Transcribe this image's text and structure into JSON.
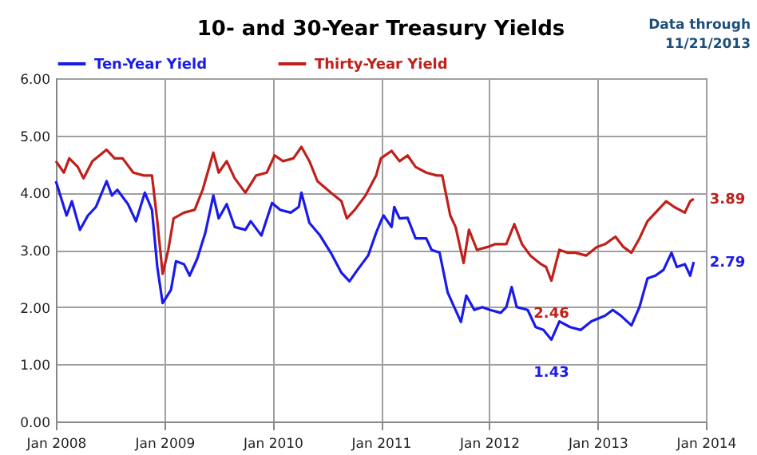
{
  "chart_data": {
    "type": "line",
    "title": "10- and 30-Year Treasury Yields",
    "annotations": [
      "Data through\n11/21/2013",
      {
        "text": "3.89",
        "x": "2013-11-21",
        "y": 3.89
      },
      {
        "text": "2.79",
        "x": "2013-11-21",
        "y": 2.79
      },
      {
        "text": "2.46",
        "x": "2012-07-29",
        "y": 2.46
      },
      {
        "text": "1.43",
        "x": "2012-07-29",
        "y": 1.43
      }
    ],
    "xlim": [
      "2008-01-01",
      "2014-01-01"
    ],
    "xticks": [
      {
        "value": "2008-01-01",
        "label": "Jan 2008"
      },
      {
        "value": "2009-01-01",
        "label": "Jan 2009"
      },
      {
        "value": "2010-01-01",
        "label": "Jan 2010"
      },
      {
        "value": "2011-01-01",
        "label": "Jan 2011"
      },
      {
        "value": "2012-01-01",
        "label": "Jan 2012"
      },
      {
        "value": "2013-01-01",
        "label": "Jan 2013"
      },
      {
        "value": "2014-01-01",
        "label": "Jan 2014"
      }
    ],
    "ylim": [
      0,
      6
    ],
    "yticks": [
      {
        "value": 0,
        "label": "0.00"
      },
      {
        "value": 1,
        "label": "1.00"
      },
      {
        "value": 2,
        "label": "2.00"
      },
      {
        "value": 3,
        "label": "3.00"
      },
      {
        "value": 4,
        "label": "4.00"
      },
      {
        "value": 5,
        "label": "5.00"
      },
      {
        "value": 6,
        "label": "6.00"
      }
    ],
    "grid": true,
    "legend": "top",
    "line_style": "solid",
    "series": [
      {
        "name": "Ten-Year Yield",
        "color": "#1a1aeb",
        "x": [
          "2008-01-01",
          "2008-01-28",
          "2008-02-06",
          "2008-02-24",
          "2008-03-22",
          "2008-04-18",
          "2008-05-15",
          "2008-06-20",
          "2008-07-08",
          "2008-07-26",
          "2008-08-31",
          "2008-09-27",
          "2008-10-15",
          "2008-10-27",
          "2008-11-20",
          "2008-12-08",
          "2008-12-26",
          "2009-01-23",
          "2009-02-09",
          "2009-03-08",
          "2009-03-27",
          "2009-04-22",
          "2009-05-19",
          "2009-06-15",
          "2009-07-03",
          "2009-07-30",
          "2009-08-26",
          "2009-10-01",
          "2009-10-19",
          "2009-11-24",
          "2009-12-30",
          "2010-01-26",
          "2010-03-03",
          "2010-03-30",
          "2010-04-08",
          "2010-05-05",
          "2010-06-10",
          "2010-07-16",
          "2010-08-21",
          "2010-09-17",
          "2010-10-14",
          "2010-11-19",
          "2010-12-16",
          "2011-01-01",
          "2011-01-10",
          "2011-02-06",
          "2011-02-15",
          "2011-03-05",
          "2011-04-01",
          "2011-04-28",
          "2011-06-03",
          "2011-06-21",
          "2011-07-18",
          "2011-08-14",
          "2011-09-01",
          "2011-09-28",
          "2011-10-16",
          "2011-11-12",
          "2011-12-09",
          "2012-01-04",
          "2012-02-09",
          "2012-02-28",
          "2012-03-17",
          "2012-04-03",
          "2012-05-10",
          "2012-06-06",
          "2012-07-02",
          "2012-07-29",
          "2012-08-25",
          "2012-09-30",
          "2012-11-05",
          "2012-12-11",
          "2013-01-26",
          "2013-02-21",
          "2013-03-20",
          "2013-04-25",
          "2013-05-22",
          "2013-06-18",
          "2013-07-15",
          "2013-08-11",
          "2013-09-07",
          "2013-09-25",
          "2013-10-22",
          "2013-11-09",
          "2013-11-21"
        ],
        "values": [
          4.2,
          3.75,
          3.6,
          3.85,
          3.35,
          3.6,
          3.75,
          4.2,
          3.95,
          4.05,
          3.8,
          3.5,
          3.8,
          4.0,
          3.7,
          2.7,
          2.07,
          2.3,
          2.8,
          2.75,
          2.55,
          2.85,
          3.3,
          3.95,
          3.55,
          3.8,
          3.4,
          3.35,
          3.5,
          3.25,
          3.82,
          3.7,
          3.65,
          3.75,
          4.0,
          3.47,
          3.25,
          2.95,
          2.6,
          2.45,
          2.65,
          2.9,
          3.3,
          3.5,
          3.6,
          3.4,
          3.75,
          3.55,
          3.56,
          3.2,
          3.2,
          3.0,
          2.95,
          2.26,
          2.05,
          1.74,
          2.2,
          1.95,
          2.0,
          1.95,
          1.9,
          2.0,
          2.35,
          2.0,
          1.95,
          1.65,
          1.6,
          1.43,
          1.75,
          1.65,
          1.6,
          1.75,
          1.85,
          1.95,
          1.85,
          1.68,
          2.0,
          2.5,
          2.55,
          2.65,
          2.95,
          2.7,
          2.75,
          2.55,
          2.79
        ]
      },
      {
        "name": "Thirty-Year Yield",
        "color": "#c0201a",
        "x": [
          "2008-01-01",
          "2008-01-28",
          "2008-02-15",
          "2008-03-15",
          "2008-04-03",
          "2008-05-03",
          "2008-06-20",
          "2008-07-17",
          "2008-08-13",
          "2008-09-18",
          "2008-10-24",
          "2008-11-20",
          "2008-12-08",
          "2008-12-26",
          "2009-01-14",
          "2009-02-01",
          "2009-03-08",
          "2009-04-13",
          "2009-05-10",
          "2009-06-15",
          "2009-07-03",
          "2009-07-30",
          "2009-08-26",
          "2009-10-01",
          "2009-11-06",
          "2009-12-12",
          "2010-01-08",
          "2010-02-05",
          "2010-03-12",
          "2010-04-08",
          "2010-05-05",
          "2010-06-01",
          "2010-07-16",
          "2010-08-21",
          "2010-09-08",
          "2010-10-05",
          "2010-11-10",
          "2010-12-16",
          "2011-01-01",
          "2011-02-06",
          "2011-03-05",
          "2011-04-01",
          "2011-04-28",
          "2011-06-03",
          "2011-07-09",
          "2011-07-27",
          "2011-08-23",
          "2011-09-10",
          "2011-10-07",
          "2011-10-25",
          "2011-11-21",
          "2011-12-27",
          "2012-01-22",
          "2012-02-28",
          "2012-03-26",
          "2012-04-21",
          "2012-05-19",
          "2012-06-24",
          "2012-07-11",
          "2012-07-29",
          "2012-08-25",
          "2012-09-21",
          "2012-10-18",
          "2012-11-23",
          "2012-12-29",
          "2013-01-26",
          "2013-03-02",
          "2013-03-29",
          "2013-04-25",
          "2013-05-22",
          "2013-06-18",
          "2013-07-24",
          "2013-08-20",
          "2013-09-16",
          "2013-10-22",
          "2013-11-09",
          "2013-11-21"
        ],
        "values": [
          4.55,
          4.35,
          4.6,
          4.45,
          4.25,
          4.55,
          4.75,
          4.6,
          4.6,
          4.35,
          4.3,
          4.3,
          3.5,
          2.58,
          3.0,
          3.55,
          3.65,
          3.7,
          4.05,
          4.7,
          4.35,
          4.55,
          4.25,
          4.0,
          4.3,
          4.35,
          4.65,
          4.55,
          4.6,
          4.8,
          4.55,
          4.2,
          4.0,
          3.85,
          3.55,
          3.7,
          3.95,
          4.3,
          4.6,
          4.73,
          4.55,
          4.65,
          4.45,
          4.35,
          4.3,
          4.3,
          3.6,
          3.4,
          2.77,
          3.35,
          3.0,
          3.05,
          3.1,
          3.1,
          3.45,
          3.1,
          2.9,
          2.75,
          2.7,
          2.46,
          3.0,
          2.95,
          2.95,
          2.9,
          3.05,
          3.1,
          3.23,
          3.05,
          2.95,
          3.2,
          3.5,
          3.7,
          3.85,
          3.75,
          3.65,
          3.85,
          3.89
        ]
      }
    ]
  }
}
